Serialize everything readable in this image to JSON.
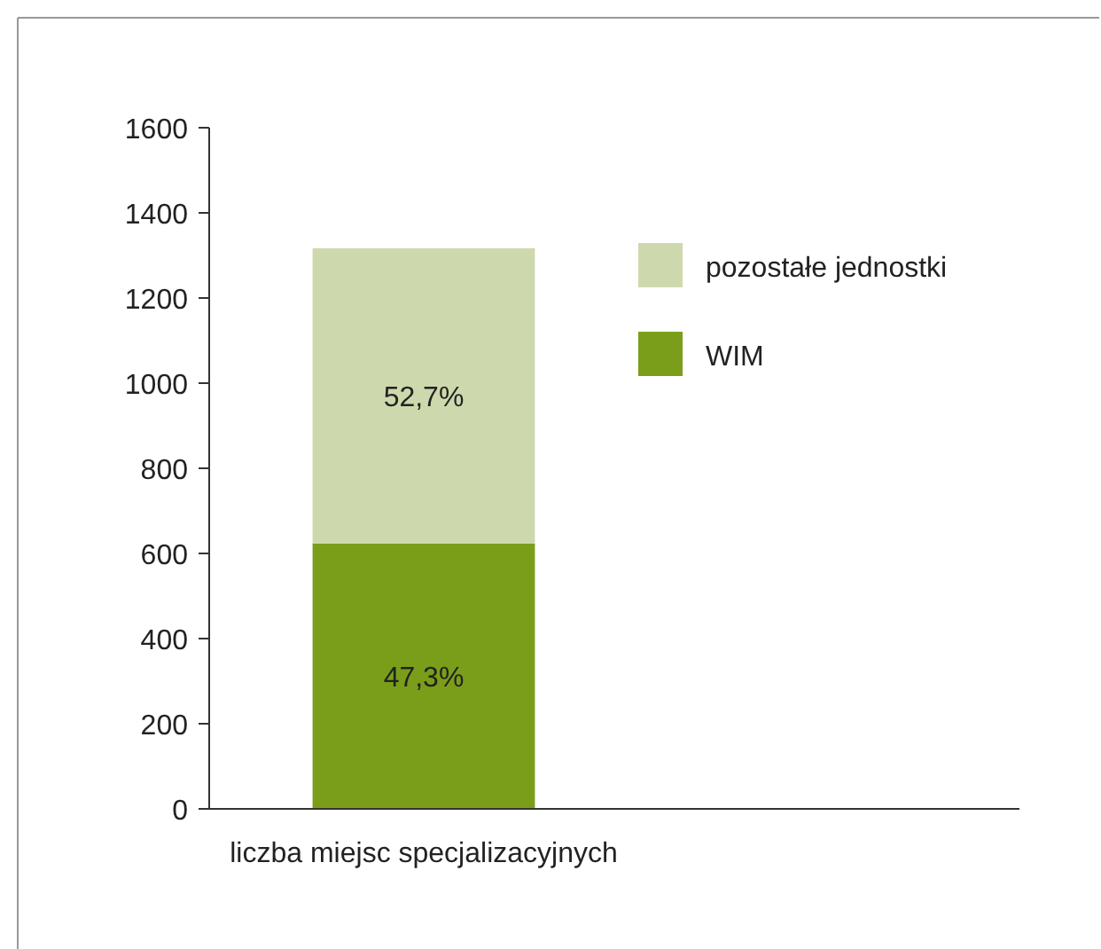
{
  "chart_data": {
    "type": "bar",
    "stacked": true,
    "categories": [
      "liczba miejsc specjalizacyjnych"
    ],
    "series": [
      {
        "name": "WIM",
        "color": "#7a9e1a",
        "values": [
          623
        ]
      },
      {
        "name": "pozostałe jednostki",
        "color": "#cdd9ad",
        "values": [
          694
        ]
      }
    ],
    "annotations": [
      "47,3%",
      "52,7%"
    ],
    "ylim": [
      0,
      1600
    ],
    "yticks": [
      0,
      200,
      400,
      600,
      800,
      1000,
      1200,
      1400,
      1600
    ],
    "grid": false,
    "legend": "top right"
  }
}
